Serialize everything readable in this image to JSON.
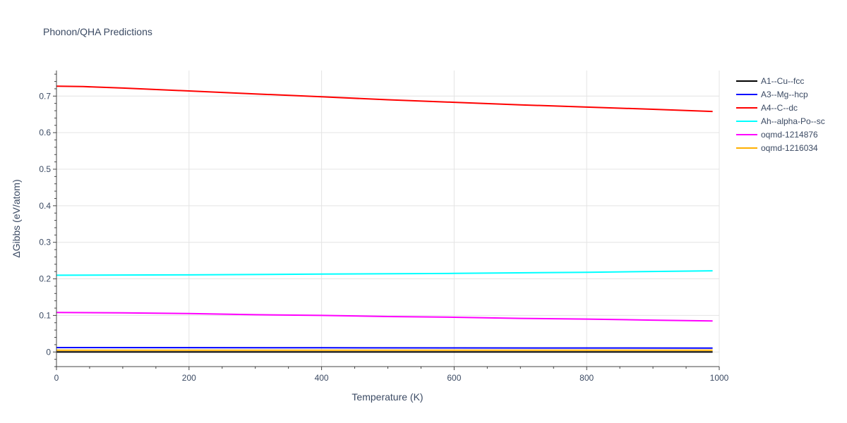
{
  "chart_data": {
    "type": "line",
    "title": "Phonon/QHA Predictions",
    "xlabel": "Temperature (K)",
    "ylabel": "ΔGibbs (eV/atom)",
    "xlim": [
      0,
      1000
    ],
    "ylim": [
      -0.04,
      0.77
    ],
    "xticks": [
      0,
      200,
      400,
      600,
      800,
      1000
    ],
    "xtick_labels": [
      "0",
      "200",
      "400",
      "600",
      "800",
      "1000"
    ],
    "yticks": [
      0,
      0.1,
      0.2,
      0.3,
      0.4,
      0.5,
      0.6,
      0.7
    ],
    "ytick_labels": [
      "0",
      "0.1",
      "0.2",
      "0.3",
      "0.4",
      "0.5",
      "0.6",
      "0.7"
    ],
    "grid": true,
    "legend_position": "right",
    "series": [
      {
        "name": "A1--Cu--fcc",
        "color": "#000000",
        "x": [
          0,
          990
        ],
        "y": [
          0.0,
          0.0
        ]
      },
      {
        "name": "A3--Mg--hcp",
        "color": "#0000ff",
        "x": [
          0,
          200,
          400,
          600,
          800,
          990
        ],
        "y": [
          0.012,
          0.0118,
          0.0115,
          0.0112,
          0.011,
          0.0108
        ]
      },
      {
        "name": "A4--C--dc",
        "color": "#ff0000",
        "x": [
          0,
          40,
          100,
          200,
          300,
          400,
          500,
          600,
          700,
          800,
          900,
          990
        ],
        "y": [
          0.727,
          0.726,
          0.722,
          0.714,
          0.706,
          0.698,
          0.69,
          0.683,
          0.676,
          0.67,
          0.664,
          0.658
        ]
      },
      {
        "name": "Ah--alpha-Po--sc",
        "color": "#00ffff",
        "x": [
          0,
          200,
          400,
          600,
          800,
          990
        ],
        "y": [
          0.21,
          0.211,
          0.213,
          0.215,
          0.218,
          0.222
        ]
      },
      {
        "name": "oqmd-1214876",
        "color": "#ff00ff",
        "x": [
          0,
          100,
          200,
          300,
          400,
          500,
          600,
          700,
          800,
          900,
          990
        ],
        "y": [
          0.108,
          0.107,
          0.105,
          0.102,
          0.1,
          0.097,
          0.095,
          0.092,
          0.09,
          0.087,
          0.085
        ]
      },
      {
        "name": "oqmd-1216034",
        "color": "#ffb000",
        "x": [
          0,
          200,
          400,
          600,
          800,
          990
        ],
        "y": [
          0.005,
          0.005,
          0.005,
          0.005,
          0.005,
          0.005
        ]
      }
    ]
  }
}
